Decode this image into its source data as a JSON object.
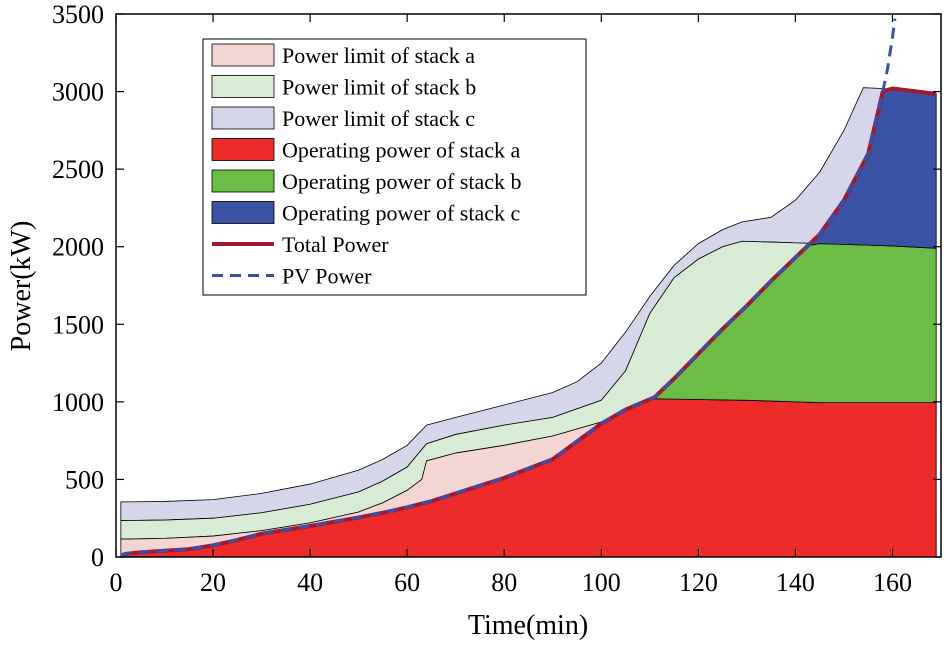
{
  "chart_data": {
    "type": "area",
    "title": "",
    "xlabel": "Time(min)",
    "ylabel": "Power(kW)",
    "xlim": [
      0,
      170
    ],
    "ylim": [
      0,
      3500
    ],
    "xticks": [
      0,
      20,
      40,
      60,
      80,
      100,
      120,
      140,
      160
    ],
    "yticks": [
      0,
      500,
      1000,
      1500,
      2000,
      2500,
      3000,
      3500
    ],
    "grid": false,
    "legend_position": "top-left",
    "colors": {
      "limit_a": "#f3d6d4",
      "limit_b": "#d8ecd5",
      "limit_c": "#d6d6ea",
      "op_a": "#ee2b2b",
      "op_b": "#6bbd45",
      "op_c": "#3b53a4",
      "total": "#a3192c",
      "pv": "#3451b0"
    },
    "series": [
      {
        "name": "Power limit of stack a",
        "kind": "limit",
        "values": [
          [
            1,
            115
          ],
          [
            10,
            120
          ],
          [
            20,
            135
          ],
          [
            30,
            170
          ],
          [
            40,
            220
          ],
          [
            50,
            290
          ],
          [
            55,
            350
          ],
          [
            60,
            430
          ],
          [
            63,
            500
          ],
          [
            64,
            620
          ],
          [
            70,
            670
          ],
          [
            80,
            720
          ],
          [
            90,
            780
          ],
          [
            100,
            870
          ],
          [
            105,
            940
          ],
          [
            110,
            1020
          ],
          [
            120,
            1015
          ],
          [
            130,
            1010
          ],
          [
            140,
            1000
          ],
          [
            145,
            995
          ],
          [
            150,
            995
          ],
          [
            160,
            995
          ],
          [
            169,
            995
          ]
        ]
      },
      {
        "name": "Power limit of stack b",
        "kind": "limit",
        "values": [
          [
            1,
            235
          ],
          [
            10,
            238
          ],
          [
            20,
            250
          ],
          [
            30,
            285
          ],
          [
            40,
            340
          ],
          [
            50,
            420
          ],
          [
            55,
            490
          ],
          [
            60,
            580
          ],
          [
            64,
            730
          ],
          [
            70,
            790
          ],
          [
            80,
            850
          ],
          [
            90,
            900
          ],
          [
            100,
            1010
          ],
          [
            105,
            1200
          ],
          [
            110,
            1570
          ],
          [
            115,
            1800
          ],
          [
            120,
            1920
          ],
          [
            125,
            2000
          ],
          [
            129,
            2035
          ],
          [
            135,
            2030
          ],
          [
            140,
            2025
          ],
          [
            145,
            2020
          ],
          [
            150,
            2015
          ],
          [
            160,
            2005
          ],
          [
            169,
            1990
          ]
        ]
      },
      {
        "name": "Power limit of stack c",
        "kind": "limit",
        "values": [
          [
            1,
            355
          ],
          [
            10,
            358
          ],
          [
            20,
            370
          ],
          [
            30,
            410
          ],
          [
            40,
            470
          ],
          [
            50,
            560
          ],
          [
            55,
            630
          ],
          [
            60,
            720
          ],
          [
            64,
            850
          ],
          [
            70,
            900
          ],
          [
            80,
            980
          ],
          [
            90,
            1060
          ],
          [
            95,
            1130
          ],
          [
            100,
            1250
          ],
          [
            105,
            1450
          ],
          [
            110,
            1680
          ],
          [
            115,
            1880
          ],
          [
            120,
            2020
          ],
          [
            125,
            2110
          ],
          [
            129,
            2160
          ],
          [
            135,
            2190
          ],
          [
            140,
            2300
          ],
          [
            145,
            2480
          ],
          [
            150,
            2750
          ],
          [
            154,
            3025
          ],
          [
            158,
            3020
          ],
          [
            160,
            3015
          ],
          [
            169,
            2985
          ]
        ]
      },
      {
        "name": "Operating power of stack a",
        "kind": "operating",
        "values": [
          [
            1,
            10
          ],
          [
            2,
            20
          ],
          [
            5,
            30
          ],
          [
            10,
            40
          ],
          [
            15,
            50
          ],
          [
            20,
            75
          ],
          [
            25,
            110
          ],
          [
            30,
            150
          ],
          [
            40,
            200
          ],
          [
            50,
            255
          ],
          [
            55,
            285
          ],
          [
            60,
            320
          ],
          [
            65,
            360
          ],
          [
            70,
            410
          ],
          [
            80,
            510
          ],
          [
            90,
            630
          ],
          [
            100,
            860
          ],
          [
            105,
            950
          ],
          [
            111,
            1020
          ],
          [
            120,
            1015
          ],
          [
            130,
            1010
          ],
          [
            140,
            1000
          ],
          [
            145,
            995
          ],
          [
            150,
            995
          ],
          [
            160,
            995
          ],
          [
            169,
            995
          ]
        ]
      },
      {
        "name": "Operating power of stack b",
        "kind": "operating",
        "values": [
          [
            111,
            1020
          ],
          [
            115,
            1150
          ],
          [
            120,
            1310
          ],
          [
            125,
            1470
          ],
          [
            130,
            1620
          ],
          [
            135,
            1780
          ],
          [
            140,
            1930
          ],
          [
            143,
            2010
          ],
          [
            145,
            2020
          ],
          [
            150,
            2015
          ],
          [
            160,
            2005
          ],
          [
            169,
            1990
          ]
        ]
      },
      {
        "name": "Operating power of stack c",
        "kind": "operating",
        "values": [
          [
            143,
            2010
          ],
          [
            145,
            2080
          ],
          [
            150,
            2300
          ],
          [
            155,
            2600
          ],
          [
            158,
            3000
          ],
          [
            160,
            3020
          ],
          [
            169,
            2985
          ]
        ]
      },
      {
        "name": "Total Power",
        "kind": "line",
        "values": [
          [
            1,
            10
          ],
          [
            2,
            20
          ],
          [
            5,
            30
          ],
          [
            10,
            40
          ],
          [
            15,
            50
          ],
          [
            20,
            75
          ],
          [
            25,
            110
          ],
          [
            30,
            150
          ],
          [
            40,
            200
          ],
          [
            50,
            255
          ],
          [
            55,
            285
          ],
          [
            60,
            320
          ],
          [
            65,
            360
          ],
          [
            70,
            410
          ],
          [
            80,
            510
          ],
          [
            90,
            630
          ],
          [
            100,
            860
          ],
          [
            105,
            950
          ],
          [
            111,
            1030
          ],
          [
            115,
            1150
          ],
          [
            120,
            1310
          ],
          [
            125,
            1470
          ],
          [
            130,
            1620
          ],
          [
            135,
            1780
          ],
          [
            140,
            1930
          ],
          [
            145,
            2080
          ],
          [
            150,
            2300
          ],
          [
            155,
            2600
          ],
          [
            158,
            3000
          ],
          [
            160,
            3020
          ],
          [
            169,
            2985
          ]
        ]
      },
      {
        "name": "PV Power",
        "kind": "dashed",
        "values": [
          [
            1,
            10
          ],
          [
            2,
            20
          ],
          [
            5,
            30
          ],
          [
            10,
            40
          ],
          [
            15,
            50
          ],
          [
            20,
            75
          ],
          [
            25,
            110
          ],
          [
            30,
            150
          ],
          [
            40,
            200
          ],
          [
            50,
            255
          ],
          [
            55,
            285
          ],
          [
            60,
            320
          ],
          [
            65,
            360
          ],
          [
            70,
            410
          ],
          [
            80,
            510
          ],
          [
            90,
            630
          ],
          [
            100,
            860
          ],
          [
            105,
            950
          ],
          [
            111,
            1030
          ],
          [
            115,
            1150
          ],
          [
            120,
            1310
          ],
          [
            125,
            1470
          ],
          [
            130,
            1620
          ],
          [
            135,
            1780
          ],
          [
            140,
            1930
          ],
          [
            145,
            2080
          ],
          [
            150,
            2300
          ],
          [
            155,
            2600
          ],
          [
            158,
            3000
          ],
          [
            159,
            3150
          ],
          [
            160,
            3350
          ],
          [
            160.5,
            3470
          ]
        ]
      }
    ],
    "legend": [
      "Power limit of stack a",
      "Power limit of stack b",
      "Power limit of stack c",
      "Operating power of stack a",
      "Operating power of stack b",
      "Operating power of stack c",
      "Total Power",
      "PV Power"
    ]
  }
}
